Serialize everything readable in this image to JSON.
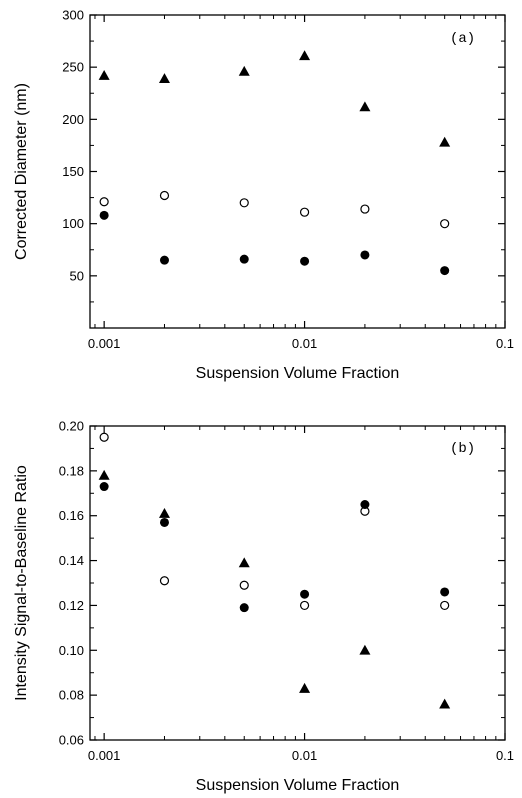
{
  "chart_data": [
    {
      "type": "scatter",
      "panel_label": "(a)",
      "xlabel": "Suspension Volume Fraction",
      "ylabel": "Corrected Diameter (nm)",
      "xscale": "log",
      "xlim": [
        0.00085,
        0.1
      ],
      "ylim": [
        0,
        300
      ],
      "xticks": [
        0.001,
        0.01,
        0.1
      ],
      "xtick_labels": [
        "0.001",
        "0.01",
        "0.1"
      ],
      "yticks": [
        50,
        100,
        150,
        200,
        250,
        300
      ],
      "ytick_labels": [
        "50",
        "100",
        "150",
        "200",
        "250",
        "300"
      ],
      "series": [
        {
          "marker": "filled-triangle",
          "x": [
            0.001,
            0.002,
            0.005,
            0.01,
            0.02,
            0.05
          ],
          "y": [
            242,
            239,
            246,
            261,
            212,
            178
          ]
        },
        {
          "marker": "open-circle",
          "x": [
            0.001,
            0.002,
            0.005,
            0.01,
            0.02,
            0.05
          ],
          "y": [
            121,
            127,
            120,
            111,
            114,
            100
          ]
        },
        {
          "marker": "filled-circle",
          "x": [
            0.001,
            0.002,
            0.005,
            0.01,
            0.02,
            0.05
          ],
          "y": [
            108,
            65,
            66,
            64,
            70,
            55
          ]
        }
      ]
    },
    {
      "type": "scatter",
      "panel_label": "(b)",
      "xlabel": "Suspension Volume Fraction",
      "ylabel": "Intensity Signal-to-Baseline Ratio",
      "xscale": "log",
      "xlim": [
        0.00085,
        0.1
      ],
      "ylim": [
        0.06,
        0.2
      ],
      "xticks": [
        0.001,
        0.01,
        0.1
      ],
      "xtick_labels": [
        "0.001",
        "0.01",
        "0.1"
      ],
      "yticks": [
        0.06,
        0.08,
        0.1,
        0.12,
        0.14,
        0.16,
        0.18,
        0.2
      ],
      "ytick_labels": [
        "0.06",
        "0.08",
        "0.10",
        "0.12",
        "0.14",
        "0.16",
        "0.18",
        "0.20"
      ],
      "series": [
        {
          "marker": "filled-triangle",
          "x": [
            0.001,
            0.002,
            0.005,
            0.01,
            0.02,
            0.05
          ],
          "y": [
            0.178,
            0.161,
            0.139,
            0.083,
            0.1,
            0.076
          ]
        },
        {
          "marker": "open-circle",
          "x": [
            0.001,
            0.002,
            0.005,
            0.01,
            0.02,
            0.05
          ],
          "y": [
            0.195,
            0.131,
            0.129,
            0.12,
            0.162,
            0.12
          ]
        },
        {
          "marker": "filled-circle",
          "x": [
            0.001,
            0.002,
            0.005,
            0.01,
            0.02,
            0.05
          ],
          "y": [
            0.173,
            0.157,
            0.119,
            0.125,
            0.165,
            0.126
          ]
        }
      ]
    }
  ]
}
